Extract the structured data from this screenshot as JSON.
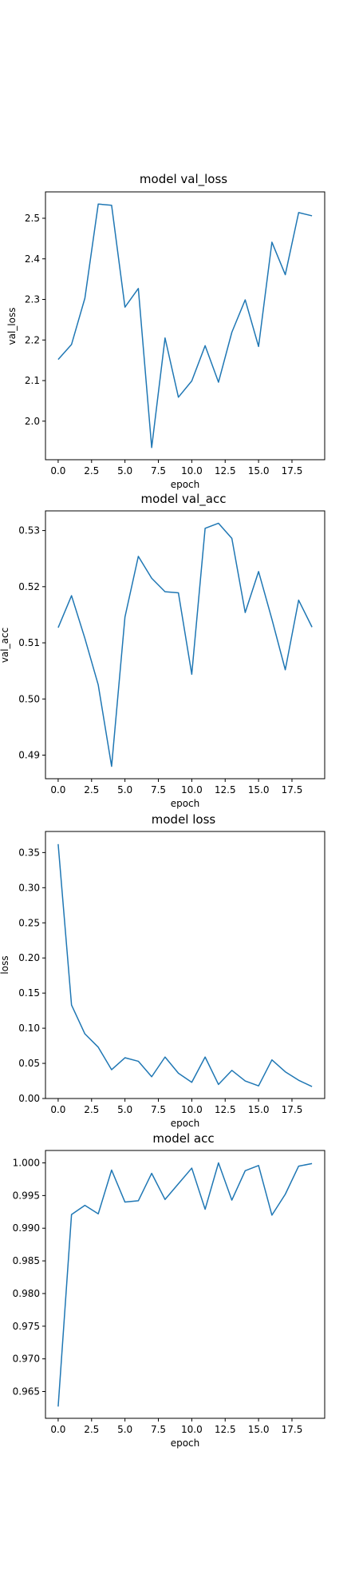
{
  "figure": {
    "line_color": "#1f77b4",
    "background": "#ffffff"
  },
  "chart_data": [
    {
      "type": "line",
      "title": "model val_loss",
      "xlabel": "epoch",
      "ylabel": "val_loss",
      "x": [
        0,
        1,
        2,
        3,
        4,
        5,
        6,
        7,
        8,
        9,
        10,
        11,
        12,
        13,
        14,
        15,
        16,
        17,
        18,
        19
      ],
      "values": [
        2.152,
        2.189,
        2.303,
        2.535,
        2.532,
        2.281,
        2.327,
        1.935,
        2.205,
        2.059,
        2.099,
        2.186,
        2.096,
        2.219,
        2.299,
        2.184,
        2.441,
        2.361,
        2.514,
        2.506
      ],
      "xlim": [
        -0.95,
        19.95
      ],
      "ylim": [
        1.905,
        2.565
      ],
      "xticks": [
        "0.0",
        "2.5",
        "5.0",
        "7.5",
        "10.0",
        "12.5",
        "15.0",
        "17.5"
      ],
      "yticks": [
        "2.0",
        "2.1",
        "2.2",
        "2.3",
        "2.4",
        "2.5"
      ],
      "grid": false,
      "color": "#1f77b4"
    },
    {
      "type": "line",
      "title": "model val_acc",
      "xlabel": "epoch",
      "ylabel": "val_acc",
      "x": [
        0,
        1,
        2,
        3,
        4,
        5,
        6,
        7,
        8,
        9,
        10,
        11,
        12,
        13,
        14,
        15,
        16,
        17,
        18,
        19
      ],
      "values": [
        0.5127,
        0.5184,
        0.5108,
        0.5025,
        0.488,
        0.5146,
        0.5254,
        0.5215,
        0.5191,
        0.5189,
        0.5044,
        0.5304,
        0.5313,
        0.5286,
        0.5154,
        0.5227,
        0.5142,
        0.5052,
        0.5176,
        0.5128
      ],
      "xlim": [
        -0.95,
        19.95
      ],
      "ylim": [
        0.4858,
        0.5335
      ],
      "xticks": [
        "0.0",
        "2.5",
        "5.0",
        "7.5",
        "10.0",
        "12.5",
        "15.0",
        "17.5"
      ],
      "yticks": [
        "0.49",
        "0.50",
        "0.51",
        "0.52",
        "0.53"
      ],
      "grid": false,
      "color": "#1f77b4"
    },
    {
      "type": "line",
      "title": "model loss",
      "xlabel": "epoch",
      "ylabel": "loss",
      "x": [
        0,
        1,
        2,
        3,
        4,
        5,
        6,
        7,
        8,
        9,
        10,
        11,
        12,
        13,
        14,
        15,
        16,
        17,
        18,
        19
      ],
      "values": [
        0.362,
        0.133,
        0.092,
        0.073,
        0.041,
        0.058,
        0.053,
        0.031,
        0.059,
        0.036,
        0.023,
        0.059,
        0.02,
        0.04,
        0.025,
        0.018,
        0.055,
        0.038,
        0.026,
        0.017
      ],
      "xlim": [
        -0.95,
        19.95
      ],
      "ylim": [
        0.0,
        0.38
      ],
      "xticks": [
        "0.0",
        "2.5",
        "5.0",
        "7.5",
        "10.0",
        "12.5",
        "15.0",
        "17.5"
      ],
      "yticks": [
        "0.00",
        "0.05",
        "0.10",
        "0.15",
        "0.20",
        "0.25",
        "0.30",
        "0.35"
      ],
      "grid": false,
      "color": "#1f77b4"
    },
    {
      "type": "line",
      "title": "model acc",
      "xlabel": "epoch",
      "ylabel": "acc",
      "x": [
        0,
        1,
        2,
        3,
        4,
        5,
        6,
        7,
        8,
        9,
        10,
        11,
        12,
        13,
        14,
        15,
        16,
        17,
        18,
        19
      ],
      "values": [
        0.9627,
        0.9921,
        0.9935,
        0.9922,
        0.9989,
        0.994,
        0.9942,
        0.9984,
        0.9944,
        0.9968,
        0.9992,
        0.9929,
        1.0,
        0.9943,
        0.9988,
        0.9996,
        0.992,
        0.9952,
        0.9995,
        0.9999
      ],
      "xlim": [
        -0.95,
        19.95
      ],
      "ylim": [
        0.9609,
        1.0019
      ],
      "xticks": [
        "0.0",
        "2.5",
        "5.0",
        "7.5",
        "10.0",
        "12.5",
        "15.0",
        "17.5"
      ],
      "yticks": [
        "0.965",
        "0.970",
        "0.975",
        "0.980",
        "0.985",
        "0.990",
        "0.995",
        "1.000"
      ],
      "grid": false,
      "color": "#1f77b4"
    }
  ]
}
